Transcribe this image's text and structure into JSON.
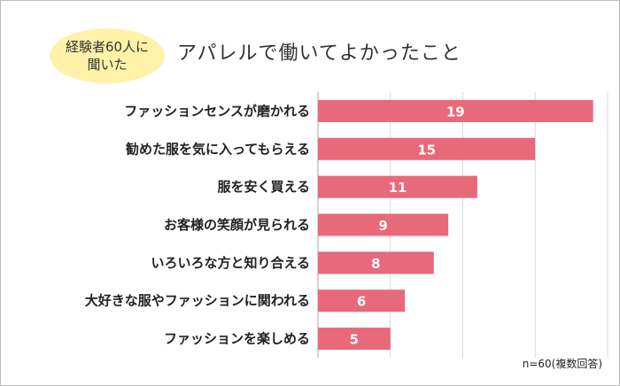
{
  "badge": {
    "line1": "経験者60人に",
    "line2": "聞いた"
  },
  "title": "アパレルで働いてよかったこと",
  "note": "n=60(複数回答)",
  "colors": {
    "bar": "#e8697a",
    "badge": "#fff2a8",
    "grid": "#d9d9d9"
  },
  "chart_data": {
    "type": "bar",
    "orientation": "horizontal",
    "categories": [
      "ファッションセンスが磨かれる",
      "勧めた服を気に入ってもらえる",
      "服を安く買える",
      "お客様の笑顔が見られる",
      "いろいろな方と知り合える",
      "大好きな服やファッションに関われる",
      "ファッションを楽しめる"
    ],
    "values": [
      19,
      15,
      11,
      9,
      8,
      6,
      5
    ],
    "xlim": [
      0,
      20
    ],
    "grid": true
  }
}
